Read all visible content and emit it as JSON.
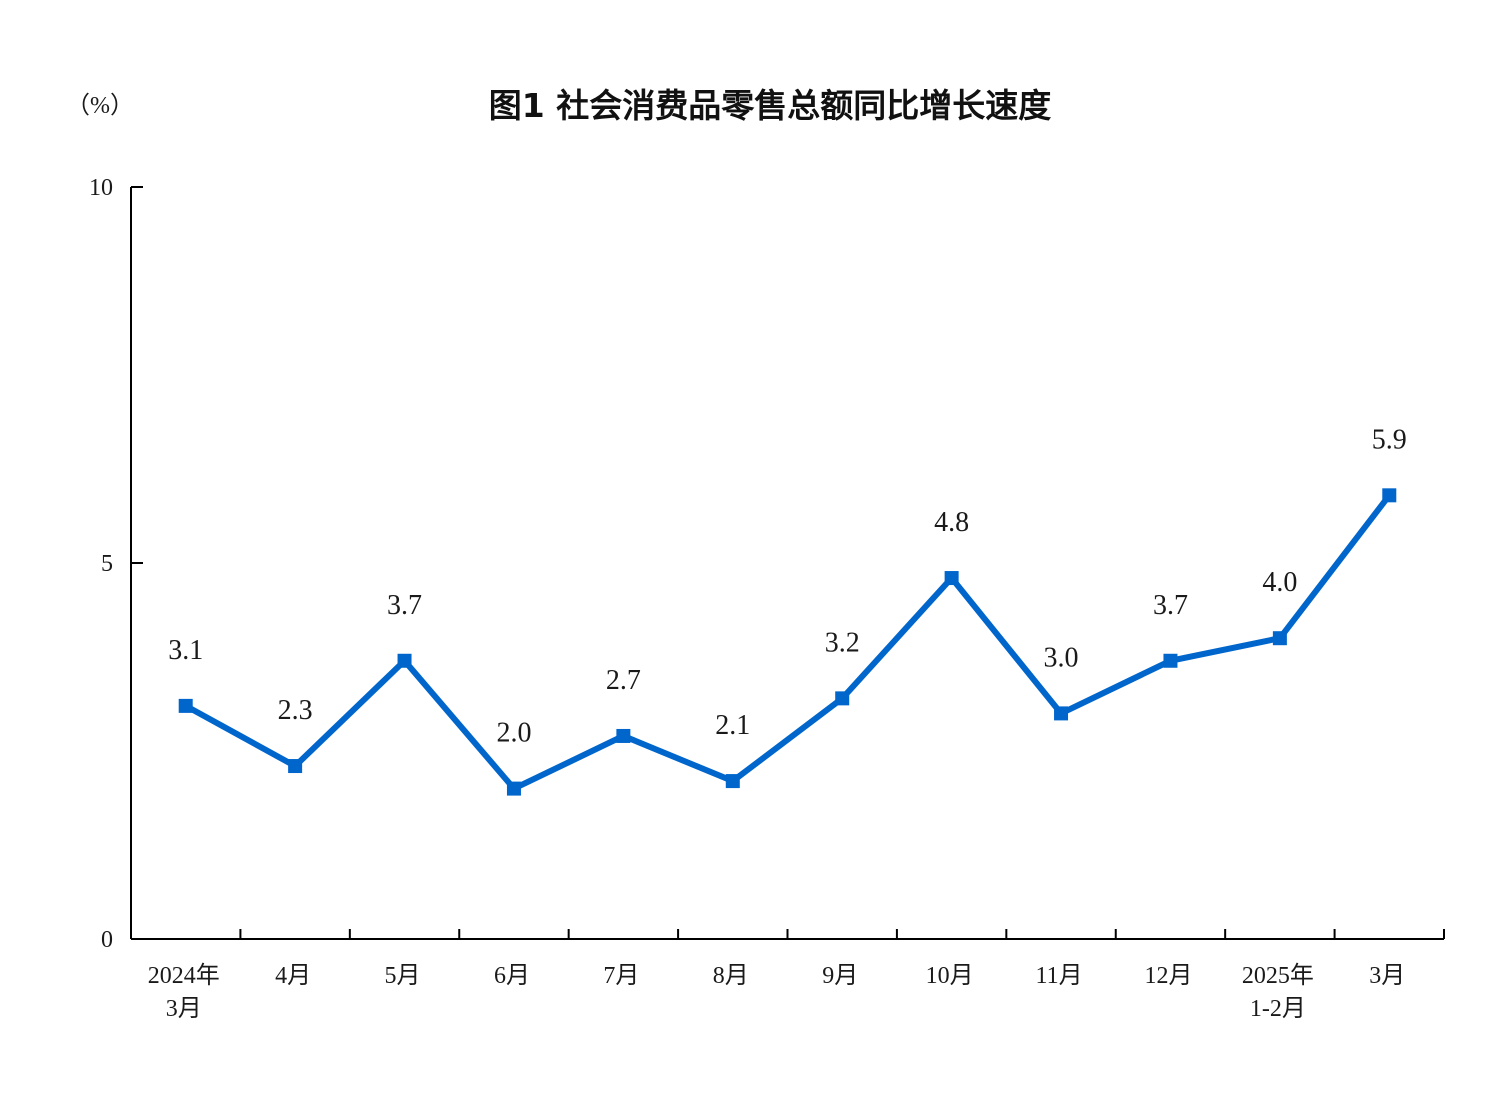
{
  "chart_data": {
    "type": "line",
    "title": "图1  社会消费品零售总额同比增长速度",
    "ylabel": "（%）",
    "xlabel": "",
    "ylim": [
      0,
      10
    ],
    "yticks": [
      "0",
      "5",
      "10"
    ],
    "categories": [
      [
        "2024年",
        "3月"
      ],
      [
        "4月"
      ],
      [
        "5月"
      ],
      [
        "6月"
      ],
      [
        "7月"
      ],
      [
        "8月"
      ],
      [
        "9月"
      ],
      [
        "10月"
      ],
      [
        "11月"
      ],
      [
        "12月"
      ],
      [
        "2025年",
        "1-2月"
      ],
      [
        "3月"
      ]
    ],
    "series": [
      {
        "values": [
          3.1,
          2.3,
          3.7,
          2.0,
          2.7,
          2.1,
          3.2,
          4.8,
          3.0,
          3.7,
          4.0,
          5.9
        ],
        "labels": [
          "3.1",
          "2.3",
          "3.7",
          "2.0",
          "2.7",
          "2.1",
          "3.2",
          "4.8",
          "3.0",
          "3.7",
          "4.0",
          "5.9"
        ],
        "color": "#0066CC",
        "marker": "square"
      }
    ],
    "grid": false,
    "legend": "none"
  }
}
